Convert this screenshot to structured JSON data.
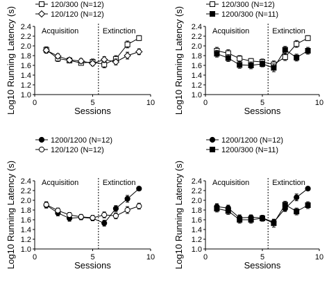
{
  "chart_data": [
    {
      "type": "line",
      "xlabel": "Sessions",
      "ylabel": "Log10 Running Latency (s)",
      "xlim": [
        0,
        10
      ],
      "ylim": [
        1.0,
        2.4
      ],
      "xticks": [
        "0",
        "5",
        "10"
      ],
      "yticks": [
        "1.0",
        "1.2",
        "1.4",
        "1.6",
        "1.8",
        "2.0",
        "2.2",
        "2.4"
      ],
      "annotations": [
        "Acquisition",
        "Extinction"
      ],
      "phase_divider_x": 5.5,
      "legend": "top-left",
      "series": [
        {
          "name": "120/300 (N=12)",
          "marker": "open-square",
          "x": [
            1,
            2,
            3,
            4,
            5,
            6,
            7,
            8,
            9
          ],
          "y": [
            1.92,
            1.74,
            1.7,
            1.65,
            1.67,
            1.62,
            1.73,
            2.03,
            2.16
          ],
          "err": [
            0.06,
            0.06,
            0.05,
            0.05,
            0.06,
            0.07,
            0.07,
            0.07,
            0.05
          ]
        },
        {
          "name": "120/120 (N=12)",
          "marker": "open-diamond",
          "x": [
            1,
            2,
            3,
            4,
            5,
            6,
            7,
            8,
            9
          ],
          "y": [
            1.91,
            1.79,
            1.71,
            1.69,
            1.64,
            1.72,
            1.67,
            1.8,
            1.88
          ],
          "err": [
            0.06,
            0.05,
            0.05,
            0.05,
            0.05,
            0.06,
            0.06,
            0.07,
            0.06
          ]
        }
      ]
    },
    {
      "type": "line",
      "xlabel": "Sessions",
      "ylabel": "Log10 Running Latency (s)",
      "xlim": [
        0,
        10
      ],
      "ylim": [
        1.0,
        2.4
      ],
      "xticks": [
        "0",
        "5",
        "10"
      ],
      "yticks": [
        "1.0",
        "1.2",
        "1.4",
        "1.6",
        "1.8",
        "2.0",
        "2.2",
        "2.4"
      ],
      "annotations": [
        "Acquisition",
        "Extinction"
      ],
      "phase_divider_x": 5.5,
      "legend": "top-left",
      "series": [
        {
          "name": "120/300 (N=12)",
          "marker": "open-square",
          "x": [
            1,
            2,
            3,
            4,
            5,
            6,
            7,
            8,
            9
          ],
          "y": [
            1.9,
            1.85,
            1.74,
            1.69,
            1.67,
            1.62,
            1.77,
            2.04,
            2.16
          ],
          "err": [
            0.07,
            0.07,
            0.06,
            0.05,
            0.06,
            0.07,
            0.07,
            0.07,
            0.05
          ]
        },
        {
          "name": "1200/300 (N=11)",
          "marker": "filled-square",
          "x": [
            1,
            2,
            3,
            4,
            5,
            6,
            7,
            8,
            9
          ],
          "y": [
            1.84,
            1.75,
            1.61,
            1.6,
            1.63,
            1.55,
            1.92,
            1.76,
            1.9
          ],
          "err": [
            0.07,
            0.07,
            0.07,
            0.07,
            0.06,
            0.08,
            0.07,
            0.07,
            0.07
          ]
        }
      ]
    },
    {
      "type": "line",
      "xlabel": "Sessions",
      "ylabel": "Log10 Running Latency (s)",
      "xlim": [
        0,
        10
      ],
      "ylim": [
        1.0,
        2.4
      ],
      "xticks": [
        "0",
        "5",
        "10"
      ],
      "yticks": [
        "1.0",
        "1.2",
        "1.4",
        "1.6",
        "1.8",
        "2.0",
        "2.2",
        "2.4"
      ],
      "annotations": [
        "Acquisition",
        "Extinction"
      ],
      "phase_divider_x": 5.5,
      "legend": "top-left",
      "series": [
        {
          "name": "1200/1200 (N=12)",
          "marker": "filled-circle",
          "x": [
            1,
            2,
            3,
            4,
            5,
            6,
            7,
            8,
            9
          ],
          "y": [
            1.9,
            1.74,
            1.63,
            1.65,
            1.63,
            1.53,
            1.83,
            2.03,
            2.24
          ],
          "err": [
            0.06,
            0.06,
            0.06,
            0.05,
            0.05,
            0.06,
            0.06,
            0.07,
            0.03
          ]
        },
        {
          "name": "120/120 (N=12)",
          "marker": "open-circle",
          "x": [
            1,
            2,
            3,
            4,
            5,
            6,
            7,
            8,
            9
          ],
          "y": [
            1.91,
            1.79,
            1.7,
            1.66,
            1.64,
            1.7,
            1.68,
            1.8,
            1.88
          ],
          "err": [
            0.06,
            0.05,
            0.05,
            0.05,
            0.05,
            0.06,
            0.06,
            0.07,
            0.06
          ]
        }
      ]
    },
    {
      "type": "line",
      "xlabel": "Sessions",
      "ylabel": "Log10 Running Latency (s)",
      "xlim": [
        0,
        10
      ],
      "ylim": [
        1.0,
        2.4
      ],
      "xticks": [
        "0",
        "5",
        "10"
      ],
      "yticks": [
        "1.0",
        "1.2",
        "1.4",
        "1.6",
        "1.8",
        "2.0",
        "2.2",
        "2.4"
      ],
      "annotations": [
        "Acquisition",
        "Extinction"
      ],
      "phase_divider_x": 5.5,
      "legend": "top-left",
      "series": [
        {
          "name": "1200/1200 (N=12)",
          "marker": "filled-circle",
          "x": [
            1,
            2,
            3,
            4,
            5,
            6,
            7,
            8,
            9
          ],
          "y": [
            1.87,
            1.84,
            1.64,
            1.65,
            1.64,
            1.55,
            1.83,
            2.06,
            2.24
          ],
          "err": [
            0.06,
            0.06,
            0.06,
            0.05,
            0.05,
            0.06,
            0.06,
            0.07,
            0.03
          ]
        },
        {
          "name": "1200/300 (N=11)",
          "marker": "filled-square",
          "x": [
            1,
            2,
            3,
            4,
            5,
            6,
            7,
            8,
            9
          ],
          "y": [
            1.83,
            1.78,
            1.6,
            1.6,
            1.63,
            1.53,
            1.91,
            1.77,
            1.9
          ],
          "err": [
            0.07,
            0.07,
            0.07,
            0.07,
            0.06,
            0.08,
            0.07,
            0.07,
            0.07
          ]
        }
      ]
    }
  ]
}
